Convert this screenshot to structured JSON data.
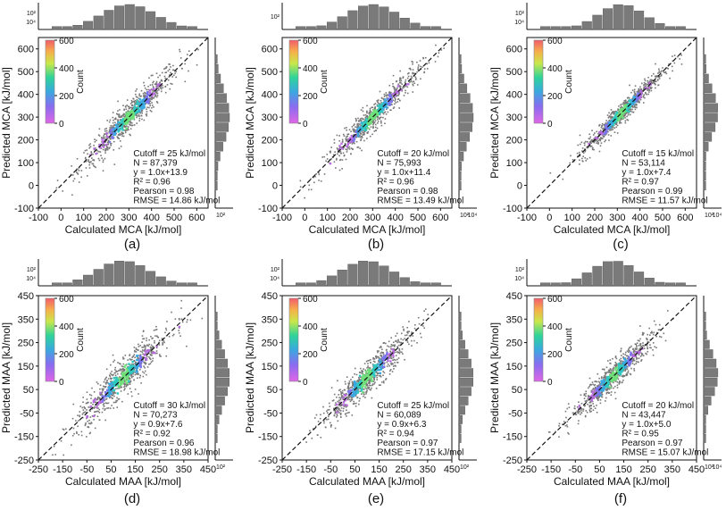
{
  "chart_data": [
    {
      "panel_label": "(a)",
      "type": "scatter",
      "xlabel": "Calculated MCA [kJ/mol]",
      "ylabel": "Predicted MCA [kJ/mol]",
      "xlim": [
        -100,
        650
      ],
      "ylim": [
        -100,
        650
      ],
      "xticks": [
        -100,
        0,
        100,
        200,
        300,
        400,
        500,
        600
      ],
      "yticks": [
        -100,
        0,
        100,
        200,
        300,
        400,
        500,
        600
      ],
      "center": 300,
      "spread": 130,
      "noise": 30,
      "colorbar": {
        "label": "Count",
        "ticks": [
          0,
          200,
          400,
          600
        ]
      },
      "stats": [
        "Cutoff = 25 kJ/mol",
        "N = 87,379",
        "y = 1.0x+13.9",
        "R² = 0.96",
        "Pearson = 0.98",
        "RMSE = 14.86 kJ/mol"
      ],
      "top_hist_ticks": [
        "10²",
        "10⁴"
      ],
      "right_hist_ticks": [
        "10²"
      ]
    },
    {
      "panel_label": "(b)",
      "type": "scatter",
      "xlabel": "Calculated MCA [kJ/mol]",
      "ylabel": "Predicted MCA [kJ/mol]",
      "xlim": [
        -100,
        650
      ],
      "ylim": [
        -100,
        650
      ],
      "xticks": [
        -100,
        0,
        100,
        200,
        300,
        400,
        500,
        600
      ],
      "yticks": [
        -100,
        0,
        100,
        200,
        300,
        400,
        500,
        600
      ],
      "center": 300,
      "spread": 125,
      "noise": 26,
      "colorbar": {
        "label": "Count",
        "ticks": [
          0,
          200,
          400,
          600
        ]
      },
      "stats": [
        "Cutoff = 20 kJ/mol",
        "N = 75,993",
        "y = 1.0x+11.4",
        "R² = 0.96",
        "Pearson = 0.98",
        "RMSE = 13.49 kJ/mol"
      ],
      "top_hist_ticks": [
        "10²"
      ],
      "right_hist_ticks": [
        "10²",
        "10⁴"
      ]
    },
    {
      "panel_label": "(c)",
      "type": "scatter",
      "xlabel": "Calculated MCA [kJ/mol]",
      "ylabel": "Predicted MCA [kJ/mol]",
      "xlim": [
        -100,
        650
      ],
      "ylim": [
        -100,
        650
      ],
      "xticks": [
        -100,
        0,
        100,
        200,
        300,
        400,
        500,
        600
      ],
      "yticks": [
        -100,
        0,
        100,
        200,
        300,
        400,
        500,
        600
      ],
      "center": 320,
      "spread": 110,
      "noise": 20,
      "colorbar": {
        "label": "Count",
        "ticks": [
          0,
          200,
          400,
          600
        ]
      },
      "stats": [
        "Cutoff = 15 kJ/mol",
        "N = 53,114",
        "y = 1.0x+7.4",
        "R² = 0.97",
        "Pearson = 0.99",
        "RMSE = 11.57 kJ/mol"
      ],
      "top_hist_ticks": [
        "10²",
        "10⁴"
      ],
      "right_hist_ticks": [
        "10²",
        "10⁴"
      ]
    },
    {
      "panel_label": "(d)",
      "type": "scatter",
      "xlabel": "Calculated MAA [kJ/mol]",
      "ylabel": "Predicted MAA [kJ/mol]",
      "xlim": [
        -250,
        450
      ],
      "ylim": [
        -250,
        450
      ],
      "xticks": [
        -250,
        -150,
        -50,
        50,
        150,
        250,
        350,
        450
      ],
      "yticks": [
        -250,
        -150,
        -50,
        50,
        150,
        250,
        350,
        450
      ],
      "center": 100,
      "spread": 120,
      "noise": 35,
      "colorbar": {
        "label": "Count",
        "ticks": [
          0,
          200,
          400,
          600
        ]
      },
      "stats": [
        "Cutoff = 30 kJ/mol",
        "N = 70,273",
        "y = 0.9x+7.6",
        "R² = 0.92",
        "Pearson = 0.96",
        "RMSE = 18.98 kJ/mol"
      ],
      "top_hist_ticks": [
        "10²",
        "10⁴"
      ],
      "right_hist_ticks": [
        "10²"
      ]
    },
    {
      "panel_label": "(e)",
      "type": "scatter",
      "xlabel": "Calculated MAA [kJ/mol]",
      "ylabel": "Predicted MAA [kJ/mol]",
      "xlim": [
        -250,
        450
      ],
      "ylim": [
        -250,
        450
      ],
      "xticks": [
        -250,
        -150,
        -50,
        50,
        150,
        250,
        350,
        450
      ],
      "yticks": [
        -250,
        -150,
        -50,
        50,
        150,
        250,
        350,
        450
      ],
      "center": 100,
      "spread": 115,
      "noise": 30,
      "colorbar": {
        "label": "Count",
        "ticks": [
          0,
          200,
          400,
          600
        ]
      },
      "stats": [
        "Cutoff = 25 kJ/mol",
        "N = 60,089",
        "y = 0.9x+6.3",
        "R² = 0.94",
        "Pearson = 0.97",
        "RMSE = 17.15 kJ/mol"
      ],
      "top_hist_ticks": [
        "10²",
        "10⁴"
      ],
      "right_hist_ticks": [
        "10²"
      ]
    },
    {
      "panel_label": "(f)",
      "type": "scatter",
      "xlabel": "Calculated MAA [kJ/mol]",
      "ylabel": "Predicted MAA [kJ/mol]",
      "xlim": [
        -250,
        450
      ],
      "ylim": [
        -250,
        450
      ],
      "xticks": [
        -250,
        -150,
        -50,
        50,
        150,
        250,
        350,
        450
      ],
      "yticks": [
        -250,
        -150,
        -50,
        50,
        150,
        250,
        350,
        450
      ],
      "center": 110,
      "spread": 105,
      "noise": 26,
      "colorbar": {
        "label": "Count",
        "ticks": [
          0,
          200,
          400,
          600
        ]
      },
      "stats": [
        "Cutoff = 20 kJ/mol",
        "N = 43,447",
        "y = 1.0x+5.0",
        "R² = 0.95",
        "Pearson = 0.97",
        "RMSE = 15.07 kJ/mol"
      ],
      "top_hist_ticks": [
        "10²",
        "10⁴"
      ],
      "right_hist_ticks": [
        "10²",
        "10⁴"
      ]
    }
  ]
}
